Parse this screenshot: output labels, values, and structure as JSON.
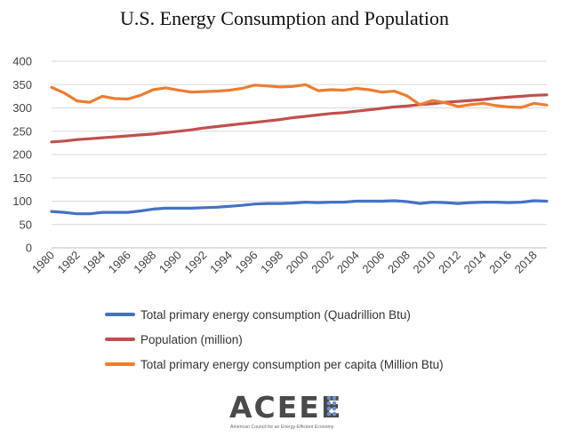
{
  "chart_data": {
    "type": "line",
    "title": "U.S. Energy Consumption and Population",
    "xlabel": "",
    "ylabel": "",
    "ylim": [
      0,
      400
    ],
    "yticks": [
      0,
      50,
      100,
      150,
      200,
      250,
      300,
      350,
      400
    ],
    "xlim": [
      1980,
      2019
    ],
    "xticks": [
      1980,
      1982,
      1984,
      1986,
      1988,
      1990,
      1992,
      1994,
      1996,
      1998,
      2000,
      2002,
      2004,
      2006,
      2008,
      2010,
      2012,
      2014,
      2016,
      2018
    ],
    "grid": "horizontal",
    "legend_position": "bottom",
    "x": [
      1980,
      1981,
      1982,
      1983,
      1984,
      1985,
      1986,
      1987,
      1988,
      1989,
      1990,
      1991,
      1992,
      1993,
      1994,
      1995,
      1996,
      1997,
      1998,
      1999,
      2000,
      2001,
      2002,
      2003,
      2004,
      2005,
      2006,
      2007,
      2008,
      2009,
      2010,
      2011,
      2012,
      2013,
      2014,
      2015,
      2016,
      2017,
      2018,
      2019
    ],
    "series": [
      {
        "name": "Total primary energy consumption (Quadrillion Btu)",
        "color": "#4472c4",
        "values": [
          78,
          76,
          73,
          73,
          76,
          76,
          76,
          79,
          83,
          85,
          85,
          85,
          86,
          87,
          89,
          91,
          94,
          95,
          95,
          96,
          98,
          97,
          98,
          98,
          100,
          100,
          100,
          101,
          99,
          95,
          98,
          97,
          95,
          97,
          98,
          98,
          97,
          98,
          101,
          100
        ]
      },
      {
        "name": "Population (million)",
        "color": "#c0504d",
        "values": [
          227,
          229,
          232,
          234,
          236,
          238,
          240,
          242,
          244,
          247,
          250,
          253,
          257,
          260,
          263,
          266,
          269,
          272,
          275,
          279,
          282,
          285,
          288,
          290,
          293,
          296,
          299,
          302,
          304,
          307,
          309,
          312,
          314,
          316,
          318,
          321,
          323,
          325,
          327,
          328
        ]
      },
      {
        "name": "Total primary energy consumption per capita (Million Btu)",
        "color": "#ed7d31",
        "values": [
          344,
          332,
          315,
          312,
          325,
          320,
          319,
          327,
          339,
          343,
          338,
          334,
          335,
          336,
          338,
          342,
          349,
          347,
          345,
          346,
          350,
          337,
          339,
          338,
          342,
          339,
          334,
          336,
          326,
          307,
          316,
          311,
          303,
          307,
          310,
          305,
          302,
          301,
          310,
          306
        ]
      }
    ]
  },
  "logo": {
    "wordmark": "ACEEE",
    "tagline": "American Council for an Energy-Efficient Economy"
  }
}
